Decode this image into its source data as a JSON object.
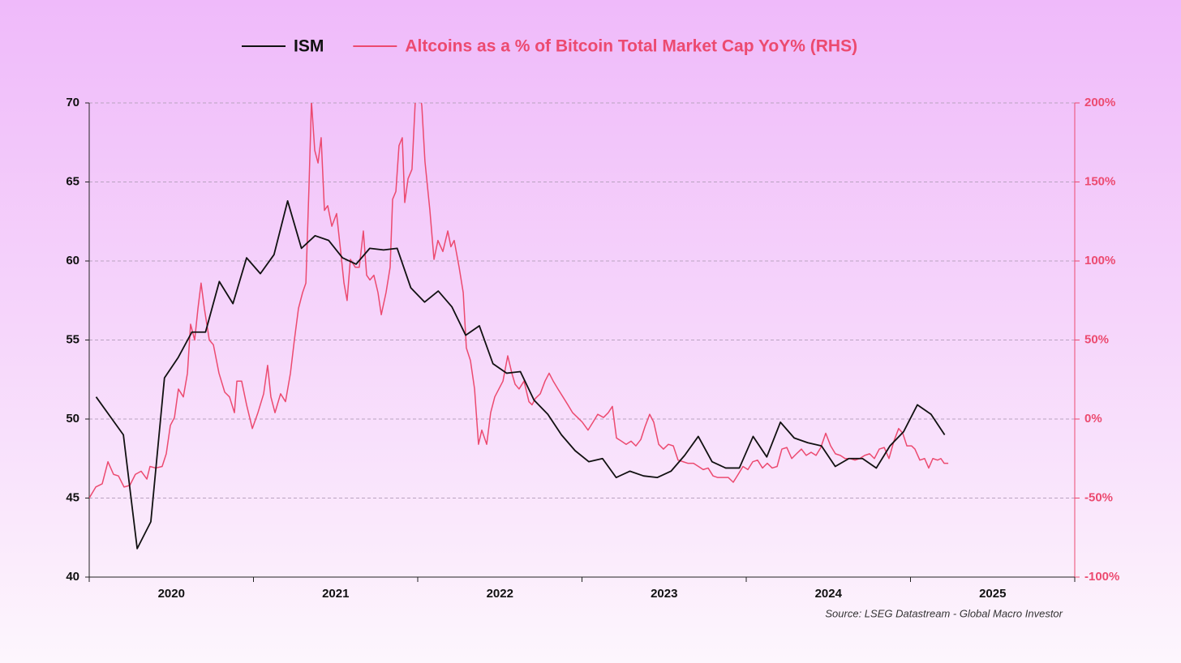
{
  "chart_data": {
    "type": "line",
    "source": "Source: LSEG Datastream - Global Macro Investor",
    "xlim": [
      2020,
      2026
    ],
    "xticks": [
      {
        "value": 2020,
        "label": "2020"
      },
      {
        "value": 2021,
        "label": "2021"
      },
      {
        "value": 2022,
        "label": "2022"
      },
      {
        "value": 2023,
        "label": "2023"
      },
      {
        "value": 2024,
        "label": "2024"
      },
      {
        "value": 2025,
        "label": "2025"
      }
    ],
    "ylim": [
      40,
      70
    ],
    "yticks": [
      40,
      45,
      50,
      55,
      60,
      65,
      70
    ],
    "y2lim": [
      -100,
      200
    ],
    "y2ticks": [
      {
        "value": -100,
        "label": "-100%"
      },
      {
        "value": -50,
        "label": "-50%"
      },
      {
        "value": 0,
        "label": "0%"
      },
      {
        "value": 50,
        "label": "50%"
      },
      {
        "value": 100,
        "label": "100%"
      },
      {
        "value": 150,
        "label": "150%"
      },
      {
        "value": 200,
        "label": "200%"
      }
    ],
    "grid": true,
    "legend": "top",
    "series": [
      {
        "name": "ISM",
        "color": "#111111",
        "axis": "y",
        "x": [
          2020.042,
          2020.125,
          2020.208,
          2020.292,
          2020.375,
          2020.458,
          2020.542,
          2020.625,
          2020.708,
          2020.792,
          2020.875,
          2020.958,
          2021.042,
          2021.125,
          2021.208,
          2021.292,
          2021.375,
          2021.458,
          2021.542,
          2021.625,
          2021.708,
          2021.792,
          2021.875,
          2021.958,
          2022.042,
          2022.125,
          2022.208,
          2022.292,
          2022.375,
          2022.458,
          2022.542,
          2022.625,
          2022.708,
          2022.792,
          2022.875,
          2022.958,
          2023.042,
          2023.125,
          2023.208,
          2023.292,
          2023.375,
          2023.458,
          2023.542,
          2023.625,
          2023.708,
          2023.792,
          2023.875,
          2023.958,
          2024.042,
          2024.125,
          2024.208,
          2024.292,
          2024.375,
          2024.458,
          2024.542,
          2024.625,
          2024.708,
          2024.792,
          2024.875,
          2024.958,
          2025.042,
          2025.125,
          2025.208
        ],
        "values": [
          51.4,
          50.2,
          49.0,
          41.8,
          43.5,
          52.6,
          53.9,
          55.5,
          55.5,
          58.7,
          57.3,
          60.2,
          59.2,
          60.4,
          63.8,
          60.8,
          61.6,
          61.3,
          60.2,
          59.8,
          60.8,
          60.7,
          60.8,
          58.3,
          57.4,
          58.1,
          57.1,
          55.3,
          55.9,
          53.5,
          52.9,
          53.0,
          51.2,
          50.3,
          49.0,
          48.0,
          47.3,
          47.5,
          46.3,
          46.7,
          46.4,
          46.3,
          46.7,
          47.7,
          48.9,
          47.3,
          46.9,
          46.9,
          48.9,
          47.6,
          49.8,
          48.8,
          48.5,
          48.3,
          47.0,
          47.5,
          47.5,
          46.9,
          48.3,
          49.2,
          50.9,
          50.3,
          49.0
        ]
      },
      {
        "name": "Altcoins as a % of Bitcoin Total Market Cap YoY% (RHS)",
        "color": "#ec4a70",
        "axis": "y2",
        "x": [
          2020.0,
          2020.04,
          2020.079,
          2020.114,
          2020.148,
          2020.178,
          2020.212,
          2020.247,
          2020.281,
          2020.316,
          2020.351,
          2020.37,
          2020.405,
          2020.444,
          2020.469,
          2020.494,
          2020.519,
          2020.543,
          2020.573,
          2020.598,
          2020.617,
          2020.642,
          2020.662,
          2020.681,
          2020.701,
          2020.731,
          2020.756,
          2020.79,
          2020.825,
          2020.854,
          2020.884,
          2020.899,
          2020.928,
          2020.958,
          2020.993,
          2021.027,
          2021.062,
          2021.086,
          2021.106,
          2021.131,
          2021.165,
          2021.195,
          2021.225,
          2021.249,
          2021.274,
          2021.299,
          2021.319,
          2021.338,
          2021.353,
          2021.373,
          2021.393,
          2021.412,
          2021.432,
          2021.452,
          2021.477,
          2021.506,
          2021.531,
          2021.551,
          2021.57,
          2021.59,
          2021.62,
          2021.644,
          2021.669,
          2021.689,
          2021.709,
          2021.733,
          2021.758,
          2021.778,
          2021.807,
          2021.832,
          2021.847,
          2021.867,
          2021.886,
          2021.906,
          2021.921,
          2021.941,
          2021.965,
          2021.985,
          2022.005,
          2022.025,
          2022.044,
          2022.074,
          2022.099,
          2022.123,
          2022.153,
          2022.183,
          2022.202,
          2022.222,
          2022.252,
          2022.277,
          2022.296,
          2022.321,
          2022.346,
          2022.37,
          2022.39,
          2022.42,
          2022.444,
          2022.469,
          2022.494,
          2022.519,
          2022.548,
          2022.573,
          2022.593,
          2022.617,
          2022.647,
          2022.677,
          2022.696,
          2022.716,
          2022.746,
          2022.775,
          2022.8,
          2022.825,
          2022.854,
          2022.884,
          2022.914,
          2022.943,
          2022.973,
          2023.002,
          2023.037,
          2023.067,
          2023.096,
          2023.131,
          2023.16,
          2023.185,
          2023.21,
          2023.24,
          2023.269,
          2023.299,
          2023.328,
          2023.358,
          2023.383,
          2023.412,
          2023.437,
          2023.467,
          2023.496,
          2023.526,
          2023.556,
          2023.585,
          2023.615,
          2023.644,
          2023.679,
          2023.709,
          2023.738,
          2023.768,
          2023.798,
          2023.827,
          2023.862,
          2023.891,
          2023.921,
          2023.951,
          2023.98,
          2024.01,
          2024.04,
          2024.069,
          2024.099,
          2024.128,
          2024.158,
          2024.188,
          2024.217,
          2024.247,
          2024.277,
          2024.306,
          2024.336,
          2024.365,
          2024.395,
          2024.425,
          2024.454,
          2024.484,
          2024.514,
          2024.543,
          2024.573,
          2024.602,
          2024.632,
          2024.662,
          2024.691,
          2024.721,
          2024.751,
          2024.78,
          2024.81,
          2024.84,
          2024.869,
          2024.899,
          2024.928,
          2024.953,
          2024.978,
          2025.007,
          2025.027,
          2025.057,
          2025.086,
          2025.111,
          2025.136,
          2025.165,
          2025.185,
          2025.205,
          2025.23
        ],
        "values": [
          -50,
          -43,
          -41,
          -27,
          -35,
          -36,
          -43,
          -42,
          -35,
          -33,
          -38,
          -30,
          -31,
          -30,
          -22,
          -4,
          1,
          19,
          14,
          29,
          60,
          50,
          70,
          86,
          70,
          50,
          47,
          29,
          17,
          14,
          4,
          24,
          24,
          9,
          -6,
          4,
          16,
          34,
          14,
          4,
          16,
          11,
          29,
          50,
          70,
          80,
          86,
          147,
          201,
          170,
          162,
          178,
          132,
          135,
          122,
          130,
          106,
          86,
          75,
          101,
          96,
          96,
          119,
          91,
          88,
          91,
          80,
          66,
          80,
          96,
          139,
          144,
          173,
          178,
          137,
          152,
          158,
          201,
          213,
          198,
          163,
          132,
          101,
          113,
          106,
          119,
          109,
          113,
          96,
          80,
          45,
          37,
          19,
          -16,
          -7,
          -16,
          4,
          14,
          19,
          24,
          40,
          29,
          22,
          19,
          24,
          11,
          9,
          13,
          16,
          24,
          29,
          24,
          19,
          14,
          9,
          4,
          1,
          -2,
          -7,
          -2,
          3,
          1,
          4,
          8,
          -12,
          -14,
          -16,
          -14,
          -17,
          -13,
          -5,
          3,
          -2,
          -16,
          -19,
          -16,
          -17,
          -26,
          -27,
          -28,
          -28,
          -30,
          -32,
          -31,
          -36,
          -37,
          -37,
          -37,
          -40,
          -35,
          -30,
          -32,
          -27,
          -26,
          -31,
          -28,
          -31,
          -30,
          -19,
          -18,
          -25,
          -22,
          -19,
          -23,
          -21,
          -23,
          -18,
          -9,
          -17,
          -22,
          -23,
          -25,
          -25,
          -26,
          -25,
          -23,
          -22,
          -25,
          -19,
          -18,
          -25,
          -14,
          -6,
          -9,
          -17,
          -17,
          -19,
          -26,
          -25,
          -31,
          -25,
          -26,
          -25,
          -28,
          -28
        ]
      }
    ]
  }
}
